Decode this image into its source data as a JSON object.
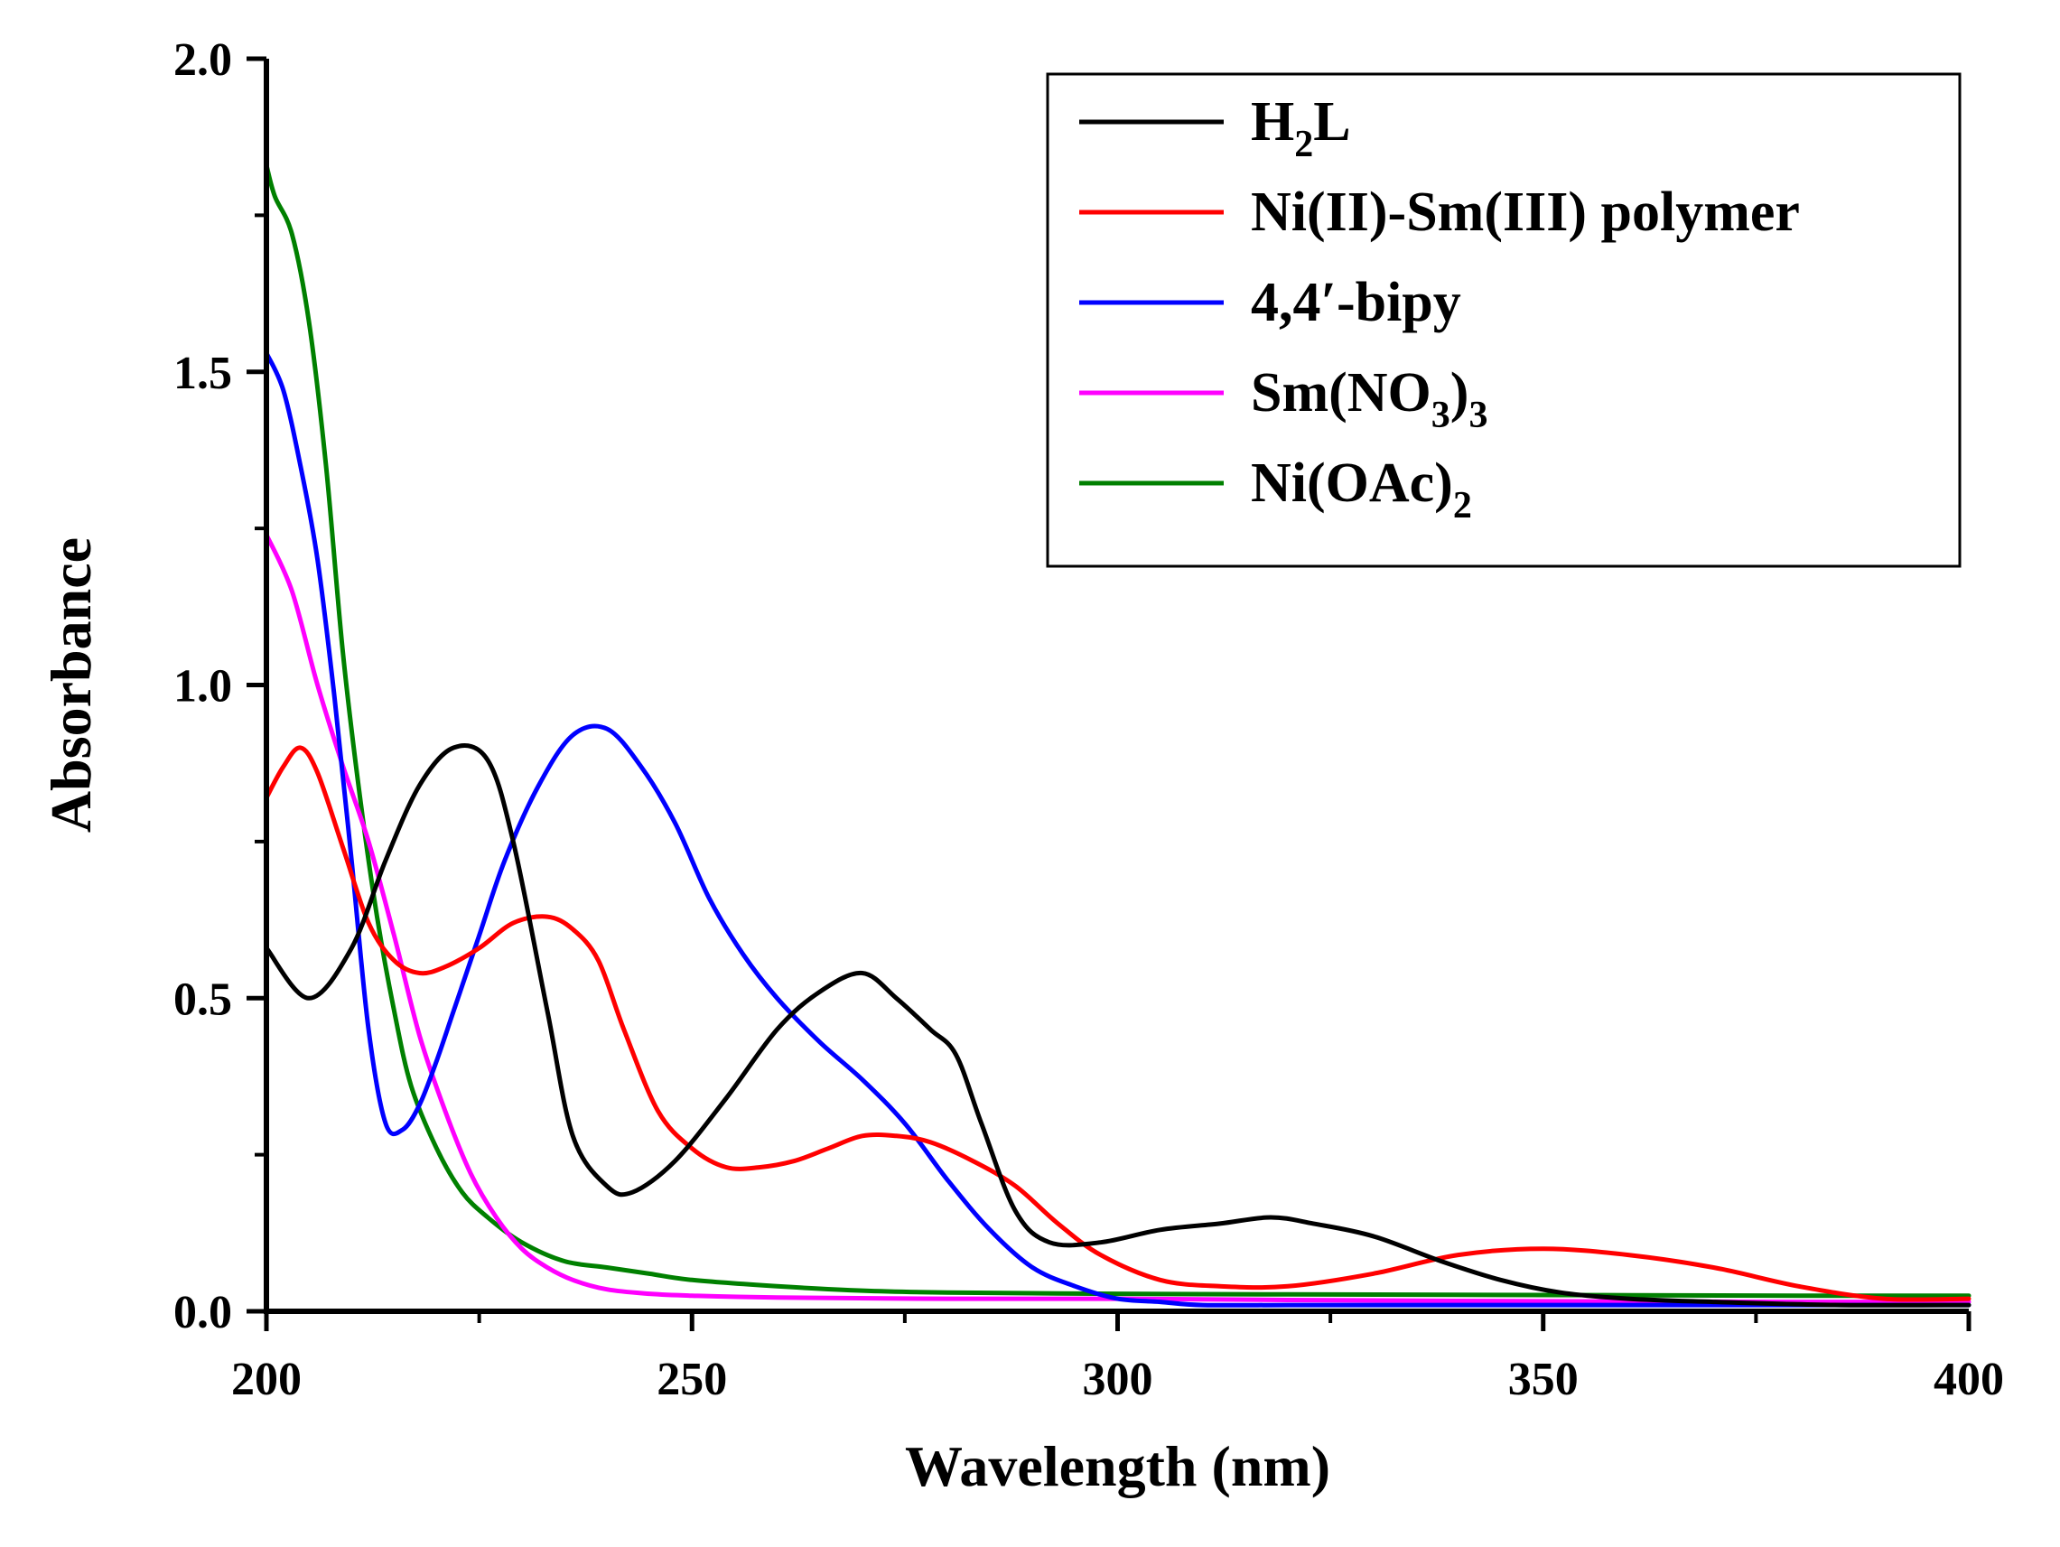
{
  "chart_data": {
    "type": "line",
    "title": "",
    "xlabel": "Wavelength (nm)",
    "ylabel": "Absorbance",
    "xlim": [
      200,
      400
    ],
    "ylim": [
      0,
      2.0
    ],
    "xticks": [
      200,
      250,
      300,
      350,
      400
    ],
    "xtick_labels": [
      "200",
      "250",
      "300",
      "350",
      "400"
    ],
    "yticks": [
      0,
      0.5,
      1.0,
      1.5,
      2.0
    ],
    "ytick_labels": [
      "0.0",
      "0.5",
      "1.0",
      "1.5",
      "2.0"
    ],
    "grid": false,
    "legend_position": "top-right",
    "series": [
      {
        "name": "H2L",
        "legend": [
          {
            "t": "H"
          },
          {
            "t": "2",
            "sub": true
          },
          {
            "t": "L"
          }
        ],
        "color": "#000000",
        "x": [
          200,
          205,
          210,
          214,
          218,
          222,
          226,
          229,
          233,
          236,
          240,
          243,
          248,
          254,
          260,
          265,
          270,
          274,
          278,
          281,
          284,
          288,
          292,
          298,
          305,
          312,
          318,
          323,
          330,
          338,
          345,
          352,
          360,
          370,
          385,
          400
        ],
        "y": [
          0.58,
          0.5,
          0.58,
          0.72,
          0.84,
          0.9,
          0.88,
          0.75,
          0.48,
          0.28,
          0.2,
          0.19,
          0.24,
          0.34,
          0.45,
          0.51,
          0.54,
          0.5,
          0.45,
          0.41,
          0.3,
          0.16,
          0.11,
          0.11,
          0.13,
          0.14,
          0.15,
          0.14,
          0.12,
          0.08,
          0.05,
          0.03,
          0.02,
          0.015,
          0.01,
          0.01
        ]
      },
      {
        "name": "Ni(II)-Sm(III) polymer",
        "legend": [
          {
            "t": "Ni(II)-Sm(III) polymer"
          }
        ],
        "color": "#ff0000",
        "x": [
          200,
          202,
          204,
          206,
          209,
          212,
          215,
          218,
          221,
          225,
          229,
          233,
          236,
          239,
          242,
          246,
          250,
          254,
          258,
          262,
          266,
          270,
          274,
          278,
          283,
          288,
          293,
          298,
          305,
          312,
          320,
          330,
          340,
          350,
          360,
          370,
          380,
          390,
          400
        ],
        "y": [
          0.82,
          0.87,
          0.9,
          0.86,
          0.74,
          0.62,
          0.56,
          0.54,
          0.55,
          0.58,
          0.62,
          0.63,
          0.61,
          0.56,
          0.45,
          0.32,
          0.26,
          0.23,
          0.23,
          0.24,
          0.26,
          0.28,
          0.28,
          0.27,
          0.24,
          0.2,
          0.14,
          0.09,
          0.05,
          0.04,
          0.04,
          0.06,
          0.09,
          0.1,
          0.09,
          0.07,
          0.04,
          0.02,
          0.02
        ]
      },
      {
        "name": "4,4′-bipy",
        "legend": [
          {
            "t": "4,4′-bipy"
          }
        ],
        "color": "#0000ff",
        "x": [
          200,
          202,
          204,
          206,
          208,
          210,
          212,
          214,
          216,
          218,
          220,
          222,
          225,
          228,
          232,
          236,
          240,
          244,
          248,
          252,
          256,
          260,
          265,
          270,
          275,
          280,
          285,
          290,
          295,
          300,
          305,
          310,
          320,
          330,
          340,
          350,
          370,
          400
        ],
        "y": [
          1.53,
          1.47,
          1.35,
          1.2,
          0.98,
          0.72,
          0.45,
          0.3,
          0.29,
          0.33,
          0.4,
          0.48,
          0.6,
          0.72,
          0.84,
          0.92,
          0.93,
          0.87,
          0.78,
          0.66,
          0.57,
          0.5,
          0.43,
          0.37,
          0.3,
          0.21,
          0.13,
          0.07,
          0.04,
          0.02,
          0.015,
          0.01,
          0.01,
          0.01,
          0.01,
          0.01,
          0.01,
          0.01
        ]
      },
      {
        "name": "Sm(NO3)3",
        "legend": [
          {
            "t": "Sm(NO"
          },
          {
            "t": "3",
            "sub": true
          },
          {
            "t": ")"
          },
          {
            "t": "3",
            "sub": true
          }
        ],
        "color": "#ff00ff",
        "x": [
          200,
          203,
          206,
          209,
          212,
          215,
          218,
          221,
          224,
          227,
          230,
          233,
          236,
          240,
          245,
          250,
          260,
          280,
          300,
          320,
          350,
          380,
          400
        ],
        "y": [
          1.24,
          1.15,
          1.0,
          0.87,
          0.75,
          0.6,
          0.44,
          0.32,
          0.22,
          0.15,
          0.1,
          0.07,
          0.05,
          0.035,
          0.028,
          0.025,
          0.022,
          0.02,
          0.02,
          0.018,
          0.016,
          0.015,
          0.015
        ]
      },
      {
        "name": "Ni(OAc)2",
        "legend": [
          {
            "t": "Ni(OAc)"
          },
          {
            "t": "2",
            "sub": true
          }
        ],
        "color": "#008000",
        "x": [
          200,
          201,
          203,
          205,
          207,
          209,
          211,
          213,
          215,
          217,
          220,
          223,
          226,
          230,
          235,
          240,
          245,
          250,
          260,
          270,
          280,
          300,
          320,
          350,
          380,
          400
        ],
        "y": [
          1.83,
          1.78,
          1.72,
          1.58,
          1.35,
          1.05,
          0.82,
          0.63,
          0.48,
          0.36,
          0.26,
          0.19,
          0.15,
          0.11,
          0.08,
          0.07,
          0.06,
          0.05,
          0.04,
          0.033,
          0.03,
          0.028,
          0.027,
          0.026,
          0.025,
          0.025
        ]
      }
    ]
  }
}
